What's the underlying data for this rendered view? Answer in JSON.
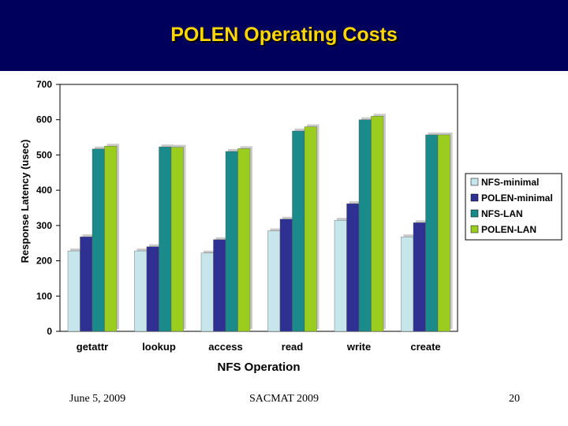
{
  "slide": {
    "title": "POLEN Operating Costs",
    "footer": {
      "date": "June 5, 2009",
      "conference": "SACMAT 2009",
      "page": "20"
    }
  },
  "colors": {
    "title_bar": "#00005c",
    "title_text": "#ffd700",
    "series": [
      "#c6e6ec",
      "#2e3192",
      "#1a8a8a",
      "#9acd1e"
    ]
  },
  "chart_data": {
    "type": "bar",
    "xlabel": "NFS Operation",
    "ylabel": "Response Latency (usec)",
    "ylim": [
      0,
      700
    ],
    "yticks": [
      0,
      100,
      200,
      300,
      400,
      500,
      600,
      700
    ],
    "grid": false,
    "legend_position": "right",
    "categories": [
      "getattr",
      "lookup",
      "access",
      "read",
      "write",
      "create"
    ],
    "series": [
      {
        "name": "NFS-minimal",
        "values": [
          228,
          228,
          222,
          285,
          315,
          268
        ]
      },
      {
        "name": "POLEN-minimal",
        "values": [
          268,
          240,
          260,
          318,
          362,
          308
        ]
      },
      {
        "name": "NFS-LAN",
        "values": [
          517,
          523,
          510,
          568,
          600,
          557
        ]
      },
      {
        "name": "POLEN-LAN",
        "values": [
          525,
          522,
          518,
          580,
          610,
          557
        ]
      }
    ]
  }
}
